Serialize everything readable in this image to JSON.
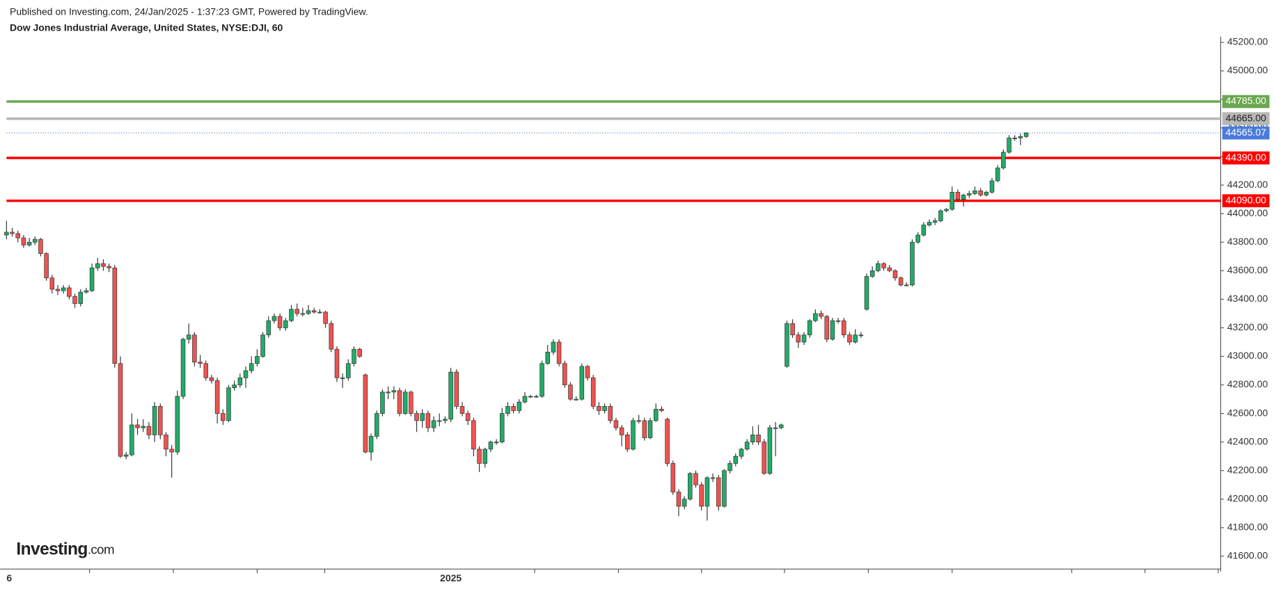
{
  "chart_data": {
    "type": "candlestick",
    "published": "Published on Investing.com, 24/Jan/2025 - 1:37:23 GMT, Powered by TradingView.",
    "title": "Dow Jones Industrial Average, United States, NYSE:DJI, 60",
    "logo_main": "Investing",
    "logo_suffix": ".com",
    "up_color": "#22ab69",
    "down_color": "#ef5350",
    "ylim": [
      41510,
      45223
    ],
    "yticks": [
      {
        "value": 41600,
        "label": "41600.00"
      },
      {
        "value": 41800,
        "label": "41800.00"
      },
      {
        "value": 42000,
        "label": "42000.00"
      },
      {
        "value": 42200,
        "label": "42200.00"
      },
      {
        "value": 42400,
        "label": "42400.00"
      },
      {
        "value": 42600,
        "label": "42600.00"
      },
      {
        "value": 42800,
        "label": "42800.00"
      },
      {
        "value": 43000,
        "label": "43000.00"
      },
      {
        "value": 43200,
        "label": "43200.00"
      },
      {
        "value": 43400,
        "label": "43400.00"
      },
      {
        "value": 43600,
        "label": "43600.00"
      },
      {
        "value": 43800,
        "label": "43800.00"
      },
      {
        "value": 44000,
        "label": "44000.00"
      },
      {
        "value": 44200,
        "label": "44200.00"
      },
      {
        "value": 44400,
        "label": "44400.00"
      },
      {
        "value": 44600,
        "label": "44600.00"
      },
      {
        "value": 44800,
        "label": "44800.00"
      },
      {
        "value": 45000,
        "label": "45000.00"
      },
      {
        "value": 45200,
        "label": "45200.00"
      }
    ],
    "levels": [
      {
        "value": 44785,
        "label": "44785.00",
        "color": "#6aa84f"
      },
      {
        "value": 44665,
        "label": "44665.00",
        "color": "#b7b7b7"
      },
      {
        "value": 44390,
        "label": "44390.00",
        "color": "#ff0000"
      },
      {
        "value": 44090,
        "label": "44090.00",
        "color": "#ff0000"
      }
    ],
    "last_price": {
      "value": 44565.07,
      "label": "44565.07",
      "color": "#4a7bdc"
    },
    "categories": [
      "6",
      null,
      null,
      null,
      null,
      null,
      null,
      null,
      null,
      null,
      null,
      null,
      null,
      null,
      null,
      null,
      null,
      null,
      null,
      null,
      null,
      null,
      null,
      null,
      null,
      null,
      null,
      null,
      null,
      null,
      null,
      null,
      null,
      null,
      null,
      null,
      null,
      null,
      null,
      null,
      null,
      null,
      null,
      null,
      null,
      null,
      null,
      null,
      null,
      null,
      null,
      null,
      null,
      null,
      null,
      null,
      null,
      null,
      null,
      null,
      null,
      null,
      null,
      null,
      null,
      null,
      null,
      null,
      null,
      null,
      null,
      null,
      null,
      null,
      null,
      null,
      null,
      null,
      "2025",
      null,
      null,
      null,
      null,
      null,
      null,
      null,
      null,
      null,
      null,
      null,
      null,
      null,
      null,
      null,
      null,
      null,
      null,
      null,
      null,
      null,
      null,
      null,
      null,
      null,
      null,
      null,
      null,
      null,
      null,
      null,
      null,
      null,
      null,
      null,
      null,
      null,
      null,
      null,
      null,
      null,
      null,
      null,
      null,
      null,
      null,
      null,
      null,
      null,
      null,
      null,
      null,
      null,
      null,
      null,
      null,
      null,
      null,
      null,
      null,
      null,
      null,
      null,
      null,
      null,
      null,
      null,
      null,
      null,
      null,
      null,
      null,
      null,
      null,
      null,
      null,
      null,
      null,
      null,
      null,
      null,
      null,
      null,
      null,
      null,
      null,
      null,
      null,
      null,
      null,
      null,
      null,
      null,
      null,
      null,
      null,
      null,
      null,
      null,
      null,
      null
    ],
    "ohlc": [
      [
        43850,
        43950,
        43820,
        43870
      ],
      [
        43870,
        43900,
        43840,
        43860
      ],
      [
        43860,
        43880,
        43800,
        43830
      ],
      [
        43830,
        43850,
        43760,
        43780
      ],
      [
        43780,
        43830,
        43770,
        43800
      ],
      [
        43800,
        43840,
        43780,
        43820
      ],
      [
        43820,
        43830,
        43700,
        43720
      ],
      [
        43720,
        43730,
        43530,
        43550
      ],
      [
        43550,
        43570,
        43440,
        43470
      ],
      [
        43470,
        43500,
        43430,
        43460
      ],
      [
        43460,
        43500,
        43440,
        43480
      ],
      [
        43480,
        43500,
        43400,
        43420
      ],
      [
        43420,
        43440,
        43340,
        43370
      ],
      [
        43370,
        43470,
        43350,
        43450
      ],
      [
        43450,
        43480,
        43440,
        43460
      ],
      [
        43460,
        43650,
        43450,
        43620
      ],
      [
        43620,
        43690,
        43600,
        43650
      ],
      [
        43650,
        43680,
        43600,
        43630
      ],
      [
        43630,
        43650,
        43590,
        43620
      ],
      [
        43620,
        43640,
        42920,
        42950
      ],
      [
        42950,
        43000,
        42290,
        42300
      ],
      [
        42300,
        42330,
        42280,
        42310
      ],
      [
        42310,
        42600,
        42300,
        42520
      ],
      [
        42520,
        42560,
        42450,
        42500
      ],
      [
        42500,
        42560,
        42470,
        42510
      ],
      [
        42510,
        42540,
        42420,
        42450
      ],
      [
        42450,
        42680,
        42400,
        42650
      ],
      [
        42650,
        42670,
        42420,
        42450
      ],
      [
        42450,
        42470,
        42300,
        42350
      ],
      [
        42350,
        42380,
        42150,
        42330
      ],
      [
        42330,
        42760,
        42310,
        42720
      ],
      [
        42720,
        43130,
        42700,
        43120
      ],
      [
        43120,
        43230,
        43090,
        43150
      ],
      [
        43150,
        43170,
        42930,
        42960
      ],
      [
        42960,
        43010,
        42920,
        42950
      ],
      [
        42950,
        42970,
        42830,
        42850
      ],
      [
        42850,
        42870,
        42810,
        42830
      ],
      [
        42830,
        42850,
        42530,
        42600
      ],
      [
        42600,
        42630,
        42520,
        42550
      ],
      [
        42550,
        42800,
        42540,
        42780
      ],
      [
        42780,
        42830,
        42760,
        42800
      ],
      [
        42800,
        42880,
        42780,
        42850
      ],
      [
        42850,
        42930,
        42780,
        42900
      ],
      [
        42900,
        43000,
        42880,
        42950
      ],
      [
        42950,
        43050,
        42930,
        43000
      ],
      [
        43000,
        43170,
        42990,
        43150
      ],
      [
        43150,
        43280,
        43130,
        43250
      ],
      [
        43250,
        43300,
        43230,
        43280
      ],
      [
        43280,
        43300,
        43180,
        43200
      ],
      [
        43200,
        43270,
        43180,
        43250
      ],
      [
        43250,
        43360,
        43240,
        43330
      ],
      [
        43330,
        43370,
        43280,
        43300
      ],
      [
        43300,
        43340,
        43280,
        43300
      ],
      [
        43300,
        43360,
        43290,
        43320
      ],
      [
        43320,
        43340,
        43300,
        43310
      ],
      [
        43310,
        43330,
        43300,
        43310
      ],
      [
        43310,
        43320,
        43200,
        43230
      ],
      [
        43230,
        43250,
        43030,
        43050
      ],
      [
        43050,
        43070,
        42820,
        42850
      ],
      [
        42850,
        42880,
        42780,
        42850
      ],
      [
        42850,
        42980,
        42830,
        42950
      ],
      [
        42950,
        43070,
        42930,
        43050
      ],
      [
        43050,
        43060,
        42990,
        43000
      ],
      [
        42870,
        42880,
        42320,
        42330
      ],
      [
        42330,
        42460,
        42270,
        42440
      ],
      [
        42440,
        42620,
        42420,
        42600
      ],
      [
        42600,
        42770,
        42580,
        42750
      ],
      [
        42750,
        42790,
        42700,
        42750
      ],
      [
        42750,
        42790,
        42700,
        42760
      ],
      [
        42760,
        42780,
        42580,
        42600
      ],
      [
        42600,
        42770,
        42590,
        42750
      ],
      [
        42750,
        42760,
        42580,
        42600
      ],
      [
        42600,
        42620,
        42470,
        42550
      ],
      [
        42550,
        42630,
        42500,
        42600
      ],
      [
        42600,
        42620,
        42470,
        42500
      ],
      [
        42500,
        42580,
        42470,
        42550
      ],
      [
        42550,
        42600,
        42510,
        42550
      ],
      [
        42550,
        42580,
        42530,
        42560
      ],
      [
        42560,
        42920,
        42540,
        42890
      ],
      [
        42890,
        42910,
        42630,
        42650
      ],
      [
        42650,
        42680,
        42580,
        42600
      ],
      [
        42600,
        42620,
        42520,
        42550
      ],
      [
        42550,
        42570,
        42300,
        42350
      ],
      [
        42350,
        42370,
        42190,
        42250
      ],
      [
        42250,
        42360,
        42220,
        42350
      ],
      [
        42350,
        42410,
        42330,
        42400
      ],
      [
        42400,
        42420,
        42380,
        42400
      ],
      [
        42400,
        42640,
        42390,
        42600
      ],
      [
        42600,
        42680,
        42580,
        42650
      ],
      [
        42650,
        42670,
        42600,
        42620
      ],
      [
        42620,
        42700,
        42600,
        42680
      ],
      [
        42680,
        42750,
        42670,
        42720
      ],
      [
        42720,
        42730,
        42710,
        42720
      ],
      [
        42720,
        42730,
        42710,
        42720
      ],
      [
        42720,
        42970,
        42710,
        42950
      ],
      [
        42950,
        43080,
        42940,
        43030
      ],
      [
        43030,
        43120,
        43010,
        43100
      ],
      [
        43100,
        43120,
        42930,
        42950
      ],
      [
        42950,
        42970,
        42780,
        42800
      ],
      [
        42800,
        42820,
        42690,
        42700
      ],
      [
        42700,
        42720,
        42690,
        42700
      ],
      [
        42700,
        42950,
        42690,
        42930
      ],
      [
        42930,
        42940,
        42830,
        42850
      ],
      [
        42850,
        42870,
        42630,
        42650
      ],
      [
        42650,
        42680,
        42590,
        42620
      ],
      [
        42620,
        42670,
        42600,
        42650
      ],
      [
        42650,
        42670,
        42530,
        42550
      ],
      [
        42550,
        42570,
        42480,
        42500
      ],
      [
        42500,
        42520,
        42370,
        42450
      ],
      [
        42450,
        42470,
        42330,
        42350
      ],
      [
        42350,
        42570,
        42340,
        42550
      ],
      [
        42550,
        42590,
        42530,
        42550
      ],
      [
        42550,
        42570,
        42410,
        42430
      ],
      [
        42430,
        42570,
        42420,
        42550
      ],
      [
        42550,
        42670,
        42540,
        42630
      ],
      [
        42630,
        42650,
        42610,
        42620
      ],
      [
        42560,
        42570,
        42230,
        42250
      ],
      [
        42250,
        42270,
        42030,
        42050
      ],
      [
        42050,
        42070,
        41880,
        41950
      ],
      [
        41950,
        42020,
        41930,
        42000
      ],
      [
        42000,
        42190,
        41990,
        42180
      ],
      [
        42180,
        42200,
        42080,
        42100
      ],
      [
        42100,
        42120,
        41920,
        41950
      ],
      [
        41950,
        42160,
        41850,
        42150
      ],
      [
        42150,
        42180,
        42120,
        42150
      ],
      [
        42150,
        42170,
        41920,
        41950
      ],
      [
        41950,
        42210,
        41940,
        42200
      ],
      [
        42200,
        42270,
        42180,
        42250
      ],
      [
        42250,
        42320,
        42230,
        42300
      ],
      [
        42300,
        42360,
        42280,
        42350
      ],
      [
        42350,
        42420,
        42340,
        42400
      ],
      [
        42400,
        42510,
        42380,
        42450
      ],
      [
        42450,
        42520,
        42380,
        42400
      ],
      [
        42400,
        42420,
        42170,
        42180
      ],
      [
        42180,
        42520,
        42170,
        42500
      ],
      [
        42500,
        42540,
        42300,
        42500
      ],
      [
        42500,
        42530,
        42490,
        42520
      ],
      [
        42930,
        43250,
        42920,
        43230
      ],
      [
        43230,
        43260,
        43130,
        43150
      ],
      [
        43150,
        43170,
        43060,
        43100
      ],
      [
        43100,
        43170,
        43080,
        43150
      ],
      [
        43150,
        43260,
        43130,
        43250
      ],
      [
        43250,
        43330,
        43240,
        43300
      ],
      [
        43300,
        43320,
        43260,
        43280
      ],
      [
        43280,
        43290,
        43100,
        43120
      ],
      [
        43120,
        43270,
        43110,
        43250
      ],
      [
        43250,
        43270,
        43230,
        43250
      ],
      [
        43250,
        43270,
        43130,
        43150
      ],
      [
        43150,
        43170,
        43080,
        43100
      ],
      [
        43100,
        43190,
        43090,
        43150
      ],
      [
        43150,
        43170,
        43130,
        43150
      ],
      [
        43330,
        43580,
        43320,
        43560
      ],
      [
        43560,
        43630,
        43550,
        43600
      ],
      [
        43600,
        43670,
        43590,
        43650
      ],
      [
        43650,
        43660,
        43600,
        43620
      ],
      [
        43620,
        43640,
        43590,
        43600
      ],
      [
        43600,
        43610,
        43530,
        43550
      ],
      [
        43550,
        43560,
        43490,
        43500
      ],
      [
        43500,
        43520,
        43490,
        43500
      ],
      [
        43500,
        43820,
        43490,
        43800
      ],
      [
        43800,
        43870,
        43790,
        43850
      ],
      [
        43850,
        43940,
        43840,
        43920
      ],
      [
        43920,
        43960,
        43910,
        43940
      ],
      [
        43940,
        43970,
        43920,
        43950
      ],
      [
        43950,
        44030,
        43940,
        44020
      ],
      [
        44020,
        44040,
        44010,
        44030
      ],
      [
        44030,
        44190,
        44020,
        44150
      ],
      [
        44150,
        44170,
        44080,
        44100
      ],
      [
        44100,
        44140,
        44050,
        44130
      ],
      [
        44130,
        44160,
        44110,
        44140
      ],
      [
        44140,
        44190,
        44130,
        44160
      ],
      [
        44160,
        44180,
        44120,
        44130
      ],
      [
        44130,
        44160,
        44120,
        44150
      ],
      [
        44150,
        44250,
        44140,
        44230
      ],
      [
        44230,
        44340,
        44220,
        44320
      ],
      [
        44320,
        44450,
        44310,
        44430
      ],
      [
        44430,
        44550,
        44420,
        44530
      ],
      [
        44530,
        44550,
        44510,
        44530
      ],
      [
        44530,
        44560,
        44480,
        44540
      ],
      [
        44540,
        44570,
        44530,
        44565.07
      ]
    ]
  }
}
